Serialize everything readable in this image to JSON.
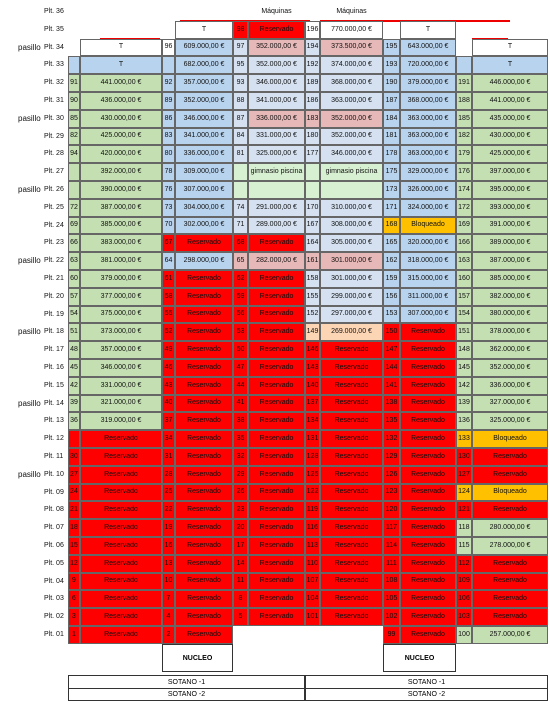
{
  "rows": [
    {
      "label": "Plt. 36",
      "cells": [
        null,
        null,
        null,
        null,
        null,
        "Máquinas",
        null,
        "Máquinas",
        null,
        null,
        null,
        null
      ],
      "fills": [
        null,
        null,
        null,
        null,
        null,
        null,
        null,
        null,
        null,
        null,
        null,
        null
      ]
    },
    {
      "label": "Plt. 35",
      "cells": [
        null,
        null,
        null,
        "T",
        "98",
        "Reservado",
        "196",
        "770.000,00 €",
        null,
        "T",
        null,
        null
      ],
      "fills": [
        null,
        null,
        null,
        "#ffffff",
        "#ff0000",
        "#ff0000",
        "#ffffff",
        "#ffffff",
        null,
        "#ffffff",
        null,
        null
      ]
    },
    {
      "label": "Plt. 34",
      "aisle": "pasillo",
      "cells": [
        null,
        "T",
        "96",
        "609.000,00 €",
        "97",
        "352.000,00 €",
        "194",
        "373.500,00 €",
        "195",
        "643.000,00 €",
        null,
        "T"
      ],
      "fills": [
        null,
        "#ffffff",
        "#ffffff",
        "#b8d3ee",
        "#d5e1f0",
        "#e6b8b7",
        "#d5e1f0",
        "#e6b8b7",
        "#b8d3ee",
        "#b8d3ee",
        null,
        "#ffffff"
      ]
    },
    {
      "label": "Plt. 33",
      "cells": [
        null,
        "T",
        null,
        "682.000,00 €",
        "95",
        "352.000,00 €",
        "192",
        "374.000,00 €",
        "193",
        "720.000,00 €",
        null,
        "T"
      ],
      "fills": [
        "#b8d3ee",
        "#b8d3ee",
        "#b8d3ee",
        "#b8d3ee",
        "#d5e1f0",
        "#d5e1f0",
        "#d5e1f0",
        "#d5e1f0",
        "#b8d3ee",
        "#b8d3ee",
        "#b8d3ee",
        "#b8d3ee"
      ]
    },
    {
      "label": "Plt. 32",
      "cells": [
        "91",
        "441.000,00 €",
        "92",
        "357.000,00 €",
        "93",
        "346.000,00 €",
        "189",
        "368.000,00 €",
        "190",
        "379.000,00 €",
        "191",
        "446.000,00 €"
      ],
      "fills": [
        "#c4dfb2",
        "#c4dfb2",
        "#b8d3ee",
        "#b8d3ee",
        "#d5e1f0",
        "#d5e1f0",
        "#d5e1f0",
        "#d5e1f0",
        "#b8d3ee",
        "#b8d3ee",
        "#c4dfb2",
        "#c4dfb2"
      ]
    },
    {
      "label": "Plt. 31",
      "cells": [
        "90",
        "436.000,00 €",
        "89",
        "352.000,00 €",
        "88",
        "341.000,00 €",
        "186",
        "363.000,00 €",
        "187",
        "368.000,00 €",
        "188",
        "441.000,00 €"
      ],
      "fills": [
        "#c4dfb2",
        "#c4dfb2",
        "#b8d3ee",
        "#b8d3ee",
        "#d5e1f0",
        "#d5e1f0",
        "#d5e1f0",
        "#d5e1f0",
        "#b8d3ee",
        "#b8d3ee",
        "#c4dfb2",
        "#c4dfb2"
      ]
    },
    {
      "label": "Plt. 30",
      "aisle": "pasillo",
      "cells": [
        "85",
        "430.000,00 €",
        "86",
        "346.000,00 €",
        "87",
        "336.000,00 €",
        "183",
        "352.000,00 €",
        "184",
        "363.000,00 €",
        "185",
        "435.000,00 €"
      ],
      "fills": [
        "#c4dfb2",
        "#c4dfb2",
        "#b8d3ee",
        "#b8d3ee",
        "#d5e1f0",
        "#e6b8b7",
        "#e6b8b7",
        "#e6b8b7",
        "#b8d3ee",
        "#b8d3ee",
        "#c4dfb2",
        "#c4dfb2"
      ]
    },
    {
      "label": "Plt. 29",
      "cells": [
        "82",
        "425.000,00 €",
        "83",
        "341.000,00 €",
        "84",
        "331.000,00 €",
        "180",
        "352.000,00 €",
        "181",
        "363.000,00 €",
        "182",
        "430.000,00 €"
      ],
      "fills": [
        "#c4dfb2",
        "#c4dfb2",
        "#b8d3ee",
        "#b8d3ee",
        "#d5e1f0",
        "#d5e1f0",
        "#d5e1f0",
        "#d5e1f0",
        "#b8d3ee",
        "#b8d3ee",
        "#c4dfb2",
        "#c4dfb2"
      ]
    },
    {
      "label": "Plt. 28",
      "cells": [
        "94",
        "420.000,00 €",
        "80",
        "336.000,00 €",
        "81",
        "325.000,00 €",
        "177",
        "346.000,00 €",
        "178",
        "363.000,00 €",
        "179",
        "425.000,00 €"
      ],
      "fills": [
        "#c4dfb2",
        "#c4dfb2",
        "#b8d3ee",
        "#b8d3ee",
        "#d5e1f0",
        "#d5e1f0",
        "#d5e1f0",
        "#d5e1f0",
        "#b8d3ee",
        "#b8d3ee",
        "#c4dfb2",
        "#c4dfb2"
      ]
    },
    {
      "label": "Plt. 27",
      "cells": [
        null,
        "392.000,00 €",
        "78",
        "309.000,00 €",
        null,
        "gimnasio piscina",
        null,
        "gimnasio piscina",
        "175",
        "329.000,00 €",
        "176",
        "397.000,00 €"
      ],
      "fills": [
        "#c4dfb2",
        "#c4dfb2",
        "#b8d3ee",
        "#b8d3ee",
        "#d8f0d2",
        "#d8f0d2",
        "#d8f0d2",
        "#d8f0d2",
        "#b8d3ee",
        "#b8d3ee",
        "#c4dfb2",
        "#c4dfb2"
      ]
    },
    {
      "label": "Plt. 26",
      "aisle": "pasillo",
      "cells": [
        null,
        "390.000,00 €",
        "76",
        "307.000,00 €",
        null,
        null,
        null,
        null,
        "173",
        "326.000,00 €",
        "174",
        "395.000,00 €"
      ],
      "fills": [
        "#c4dfb2",
        "#c4dfb2",
        "#b8d3ee",
        "#b8d3ee",
        "#d8f0d2",
        "#d8f0d2",
        "#d8f0d2",
        "#d8f0d2",
        "#b8d3ee",
        "#b8d3ee",
        "#c4dfb2",
        "#c4dfb2"
      ]
    },
    {
      "label": "Plt. 25",
      "cells": [
        "72",
        "387.000,00 €",
        "73",
        "304.000,00 €",
        "74",
        "291.000,00 €",
        "170",
        "310.000,00 €",
        "171",
        "324.000,00 €",
        "172",
        "393.000,00 €"
      ],
      "fills": [
        "#c4dfb2",
        "#c4dfb2",
        "#b8d3ee",
        "#b8d3ee",
        "#d5e1f0",
        "#d5e1f0",
        "#d5e1f0",
        "#d5e1f0",
        "#b8d3ee",
        "#b8d3ee",
        "#c4dfb2",
        "#c4dfb2"
      ]
    },
    {
      "label": "Plt. 24",
      "cells": [
        "69",
        "385.000,00 €",
        "70",
        "302.000,00 €",
        "71",
        "289.000,00 €",
        "167",
        "308.000,00 €",
        "168",
        "Bloqueado",
        "169",
        "391.000,00 €"
      ],
      "fills": [
        "#c4dfb2",
        "#c4dfb2",
        "#b8d3ee",
        "#b8d3ee",
        "#d5e1f0",
        "#d5e1f0",
        "#d5e1f0",
        "#d5e1f0",
        "#ffc000",
        "#ffc000",
        "#c4dfb2",
        "#c4dfb2"
      ]
    },
    {
      "label": "Plt. 23",
      "cells": [
        "66",
        "383.000,00 €",
        "67",
        "Reservado",
        "68",
        "Reservado",
        "164",
        "305.000,00 €",
        "165",
        "320.000,00 €",
        "166",
        "389.000,00 €"
      ],
      "fills": [
        "#c4dfb2",
        "#c4dfb2",
        "#ff0000",
        "#ff0000",
        "#ff0000",
        "#ff0000",
        "#d5e1f0",
        "#d5e1f0",
        "#b8d3ee",
        "#b8d3ee",
        "#c4dfb2",
        "#c4dfb2"
      ]
    },
    {
      "label": "Plt. 22",
      "aisle": "pasillo",
      "cells": [
        "63",
        "381.000,00 €",
        "64",
        "298.000,00 €",
        "65",
        "282.000,00 €",
        "161",
        "301.000,00 €",
        "162",
        "318.000,00 €",
        "163",
        "387.000,00 €"
      ],
      "fills": [
        "#c4dfb2",
        "#c4dfb2",
        "#b8d3ee",
        "#b8d3ee",
        "#e6b8b7",
        "#e6b8b7",
        "#e6b8b7",
        "#e6b8b7",
        "#b8d3ee",
        "#b8d3ee",
        "#c4dfb2",
        "#c4dfb2"
      ]
    },
    {
      "label": "Plt. 21",
      "cells": [
        "60",
        "379.000,00 €",
        "61",
        "Reservado",
        "62",
        "Reservado",
        "158",
        "301.000,00 €",
        "159",
        "315.000,00 €",
        "160",
        "385.000,00 €"
      ],
      "fills": [
        "#c4dfb2",
        "#c4dfb2",
        "#ff0000",
        "#ff0000",
        "#ff0000",
        "#ff0000",
        "#d5e1f0",
        "#d5e1f0",
        "#b8d3ee",
        "#b8d3ee",
        "#c4dfb2",
        "#c4dfb2"
      ]
    },
    {
      "label": "Plt. 20",
      "cells": [
        "57",
        "377.000,00 €",
        "58",
        "Reservado",
        "59",
        "Reservado",
        "155",
        "299.000,00 €",
        "156",
        "311.000,00 €",
        "157",
        "382.000,00 €"
      ],
      "fills": [
        "#c4dfb2",
        "#c4dfb2",
        "#ff0000",
        "#ff0000",
        "#ff0000",
        "#ff0000",
        "#d5e1f0",
        "#d5e1f0",
        "#b8d3ee",
        "#b8d3ee",
        "#c4dfb2",
        "#c4dfb2"
      ]
    },
    {
      "label": "Plt. 19",
      "cells": [
        "54",
        "375.000,00 €",
        "55",
        "Reservado",
        "56",
        "Reservado",
        "152",
        "297.000,00 €",
        "153",
        "307.000,00 €",
        "154",
        "380.000,00 €"
      ],
      "fills": [
        "#c4dfb2",
        "#c4dfb2",
        "#ff0000",
        "#ff0000",
        "#ff0000",
        "#ff0000",
        "#d5e1f0",
        "#d5e1f0",
        "#b8d3ee",
        "#b8d3ee",
        "#c4dfb2",
        "#c4dfb2"
      ]
    },
    {
      "label": "Plt. 18",
      "aisle": "pasillo",
      "cells": [
        "51",
        "373.000,00 €",
        "52",
        "Reservado",
        "53",
        "Reservado",
        "149",
        "269.000,00 €",
        "150",
        "Reservado",
        "151",
        "378.000,00 €"
      ],
      "fills": [
        "#c4dfb2",
        "#c4dfb2",
        "#ff0000",
        "#ff0000",
        "#ff0000",
        "#ff0000",
        "#fcd5b4",
        "#fcd5b4",
        "#ff0000",
        "#ff0000",
        "#c4dfb2",
        "#c4dfb2"
      ]
    },
    {
      "label": "Plt. 17",
      "cells": [
        "48",
        "357.000,00 €",
        "49",
        "Reservado",
        "50",
        "Reservado",
        "146",
        "Reservado",
        "147",
        "Reservado",
        "148",
        "362.000,00 €"
      ],
      "fills": [
        "#c4dfb2",
        "#c4dfb2",
        "#ff0000",
        "#ff0000",
        "#ff0000",
        "#ff0000",
        "#ff0000",
        "#ff0000",
        "#ff0000",
        "#ff0000",
        "#c4dfb2",
        "#c4dfb2"
      ]
    },
    {
      "label": "Plt. 16",
      "cells": [
        "45",
        "346.000,00 €",
        "46",
        "Reservado",
        "47",
        "Reservado",
        "143",
        "Reservado",
        "144",
        "Reservado",
        "145",
        "352.000,00 €"
      ],
      "fills": [
        "#c4dfb2",
        "#c4dfb2",
        "#ff0000",
        "#ff0000",
        "#ff0000",
        "#ff0000",
        "#ff0000",
        "#ff0000",
        "#ff0000",
        "#ff0000",
        "#c4dfb2",
        "#c4dfb2"
      ]
    },
    {
      "label": "Plt. 15",
      "cells": [
        "42",
        "331.000,00 €",
        "43",
        "Reservado",
        "44",
        "Reservado",
        "140",
        "Reservado",
        "141",
        "Reservado",
        "142",
        "336.000,00 €"
      ],
      "fills": [
        "#c4dfb2",
        "#c4dfb2",
        "#ff0000",
        "#ff0000",
        "#ff0000",
        "#ff0000",
        "#ff0000",
        "#ff0000",
        "#ff0000",
        "#ff0000",
        "#c4dfb2",
        "#c4dfb2"
      ]
    },
    {
      "label": "Plt. 14",
      "aisle": "pasillo",
      "cells": [
        "39",
        "321.000,00 €",
        "40",
        "Reservado",
        "41",
        "Reservado",
        "137",
        "Reservado",
        "138",
        "Reservado",
        "139",
        "327.000,00 €"
      ],
      "fills": [
        "#c4dfb2",
        "#c4dfb2",
        "#ff0000",
        "#ff0000",
        "#ff0000",
        "#ff0000",
        "#ff0000",
        "#ff0000",
        "#ff0000",
        "#ff0000",
        "#c4dfb2",
        "#c4dfb2"
      ]
    },
    {
      "label": "Plt. 13",
      "cells": [
        "36",
        "319.000,00 €",
        "37",
        "Reservado",
        "38",
        "Reservado",
        "134",
        "Reservado",
        "135",
        "Reservado",
        "136",
        "325.000,00 €"
      ],
      "fills": [
        "#c4dfb2",
        "#c4dfb2",
        "#ff0000",
        "#ff0000",
        "#ff0000",
        "#ff0000",
        "#ff0000",
        "#ff0000",
        "#ff0000",
        "#ff0000",
        "#c4dfb2",
        "#c4dfb2"
      ]
    },
    {
      "label": "Plt. 12",
      "cells": [
        null,
        "Reservado",
        "34",
        "Reservado",
        "35",
        "Reservado",
        "131",
        "Reservado",
        "132",
        "Reservado",
        "133",
        "Bloqueado"
      ],
      "fills": [
        "#ff0000",
        "#ff0000",
        "#ff0000",
        "#ff0000",
        "#ff0000",
        "#ff0000",
        "#ff0000",
        "#ff0000",
        "#ff0000",
        "#ff0000",
        "#ffc000",
        "#ffc000"
      ]
    },
    {
      "label": "Plt. 11",
      "cells": [
        "30",
        "Reservado",
        "31",
        "Reservado",
        "32",
        "Reservado",
        "128",
        "Reservado",
        "129",
        "Reservado",
        "130",
        "Reservado"
      ],
      "fills": [
        "#ff0000",
        "#ff0000",
        "#ff0000",
        "#ff0000",
        "#ff0000",
        "#ff0000",
        "#ff0000",
        "#ff0000",
        "#ff0000",
        "#ff0000",
        "#ff0000",
        "#ff0000"
      ]
    },
    {
      "label": "Plt. 10",
      "aisle": "pasillo",
      "cells": [
        "27",
        "Reservado",
        "28",
        "Reservado",
        "29",
        "Reservado",
        "125",
        "Reservado",
        "126",
        "Reservado",
        "127",
        "Reservado"
      ],
      "fills": [
        "#ff0000",
        "#ff0000",
        "#ff0000",
        "#ff0000",
        "#ff0000",
        "#ff0000",
        "#ff0000",
        "#ff0000",
        "#ff0000",
        "#ff0000",
        "#ff0000",
        "#ff0000"
      ]
    },
    {
      "label": "Plt. 09",
      "cells": [
        "24",
        "Reservado",
        "25",
        "Reservado",
        "26",
        "Reservado",
        "122",
        "Reservado",
        "123",
        "Reservado",
        "124",
        "Bloqueado"
      ],
      "fills": [
        "#ff0000",
        "#ff0000",
        "#ff0000",
        "#ff0000",
        "#ff0000",
        "#ff0000",
        "#ff0000",
        "#ff0000",
        "#ff0000",
        "#ff0000",
        "#ffc000",
        "#ffc000"
      ]
    },
    {
      "label": "Plt. 08",
      "cells": [
        "21",
        "Reservado",
        "22",
        "Reservado",
        "23",
        "Reservado",
        "119",
        "Reservado",
        "120",
        "Reservado",
        "121",
        "Reservado"
      ],
      "fills": [
        "#ff0000",
        "#ff0000",
        "#ff0000",
        "#ff0000",
        "#ff0000",
        "#ff0000",
        "#ff0000",
        "#ff0000",
        "#ff0000",
        "#ff0000",
        "#ff0000",
        "#ff0000"
      ]
    },
    {
      "label": "Plt. 07",
      "cells": [
        "18",
        "Reservado",
        "19",
        "Reservado",
        "20",
        "Reservado",
        "116",
        "Reservado",
        "117",
        "Reservado",
        "118",
        "280.000,00 €"
      ],
      "fills": [
        "#ff0000",
        "#ff0000",
        "#ff0000",
        "#ff0000",
        "#ff0000",
        "#ff0000",
        "#ff0000",
        "#ff0000",
        "#ff0000",
        "#ff0000",
        "#c4dfb2",
        "#c4dfb2"
      ]
    },
    {
      "label": "Plt. 06",
      "cells": [
        "15",
        "Reservado",
        "16",
        "Reservado",
        "17",
        "Reservado",
        "113",
        "Reservado",
        "114",
        "Reservado",
        "115",
        "278.000,00 €"
      ],
      "fills": [
        "#ff0000",
        "#ff0000",
        "#ff0000",
        "#ff0000",
        "#ff0000",
        "#ff0000",
        "#ff0000",
        "#ff0000",
        "#ff0000",
        "#ff0000",
        "#c4dfb2",
        "#c4dfb2"
      ]
    },
    {
      "label": "Plt. 05",
      "cells": [
        "12",
        "Reservado",
        "13",
        "Reservado",
        "14",
        "Reservado",
        "110",
        "Reservado",
        "111",
        "Reservado",
        "112",
        "Reservado"
      ],
      "fills": [
        "#ff0000",
        "#ff0000",
        "#ff0000",
        "#ff0000",
        "#ff0000",
        "#ff0000",
        "#ff0000",
        "#ff0000",
        "#ff0000",
        "#ff0000",
        "#ff0000",
        "#ff0000"
      ]
    },
    {
      "label": "Plt. 04",
      "cells": [
        "9",
        "Reservado",
        "10",
        "Reservado",
        "11",
        "Reservado",
        "107",
        "Reservado",
        "108",
        "Reservado",
        "109",
        "Reservado"
      ],
      "fills": [
        "#ff0000",
        "#ff0000",
        "#ff0000",
        "#ff0000",
        "#ff0000",
        "#ff0000",
        "#ff0000",
        "#ff0000",
        "#ff0000",
        "#ff0000",
        "#ff0000",
        "#ff0000"
      ]
    },
    {
      "label": "Plt. 03",
      "cells": [
        "6",
        "Reservado",
        "7",
        "Reservado",
        "8",
        "Reservado",
        "104",
        "Reservado",
        "105",
        "Reservado",
        "106",
        "Reservado"
      ],
      "fills": [
        "#ff0000",
        "#ff0000",
        "#ff0000",
        "#ff0000",
        "#ff0000",
        "#ff0000",
        "#ff0000",
        "#ff0000",
        "#ff0000",
        "#ff0000",
        "#ff0000",
        "#ff0000"
      ]
    },
    {
      "label": "Plt. 02",
      "cells": [
        "3",
        "Reservado",
        "4",
        "Reservado",
        "5",
        "Reservado",
        "101",
        "Reservado",
        "102",
        "Reservado",
        "103",
        "Reservado"
      ],
      "fills": [
        "#ff0000",
        "#ff0000",
        "#ff0000",
        "#ff0000",
        "#ff0000",
        "#ff0000",
        "#ff0000",
        "#ff0000",
        "#ff0000",
        "#ff0000",
        "#ff0000",
        "#ff0000"
      ]
    },
    {
      "label": "Plt. 01",
      "cells": [
        "1",
        "Reservado",
        "2",
        "Reservado",
        null,
        null,
        null,
        null,
        "99",
        "Reservado",
        "100",
        "257.000,00 €"
      ],
      "fills": [
        "#ff0000",
        "#ff0000",
        "#ff0000",
        "#ff0000",
        null,
        null,
        null,
        null,
        "#ff0000",
        "#ff0000",
        "#c4dfb2",
        "#c4dfb2"
      ]
    }
  ],
  "core": [
    "NUCLEO",
    "NUCLEO"
  ],
  "basements": [
    [
      "SOTANO -1",
      "SOTANO -1"
    ],
    [
      "SOTANO -2",
      "SOTANO -2"
    ]
  ]
}
